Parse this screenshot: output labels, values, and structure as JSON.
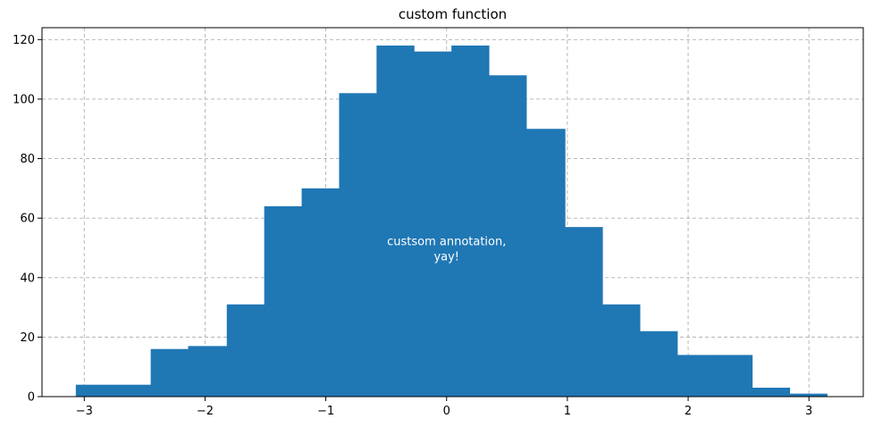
{
  "chart_data": {
    "type": "bar",
    "title": "custom function",
    "xlabel": "",
    "ylabel": "",
    "xlim": [
      -3.35,
      3.45
    ],
    "ylim": [
      0,
      124
    ],
    "grid": true,
    "color": "#1f77b4",
    "bin_edges": [
      -3.07,
      -2.76,
      -2.45,
      -2.14,
      -1.82,
      -1.51,
      -1.2,
      -0.89,
      -0.58,
      -0.27,
      0.04,
      0.35,
      0.66,
      0.98,
      1.29,
      1.6,
      1.91,
      2.22,
      2.53,
      2.84,
      3.15
    ],
    "values": [
      4,
      4,
      16,
      17,
      31,
      64,
      70,
      102,
      118,
      116,
      118,
      108,
      90,
      57,
      31,
      22,
      14,
      14,
      3,
      1
    ],
    "x_ticks": [
      -3,
      -2,
      -1,
      0,
      1,
      2,
      3
    ],
    "x_tick_labels": [
      "−3",
      "−2",
      "−1",
      "0",
      "1",
      "2",
      "3"
    ],
    "y_ticks": [
      0,
      20,
      40,
      60,
      80,
      100,
      120
    ],
    "y_tick_labels": [
      "0",
      "20",
      "40",
      "60",
      "80",
      "100",
      "120"
    ],
    "annotation": {
      "lines": [
        "custsom annotation,",
        "yay!"
      ],
      "x": 0,
      "y": 50,
      "color": "#ffffff"
    }
  }
}
